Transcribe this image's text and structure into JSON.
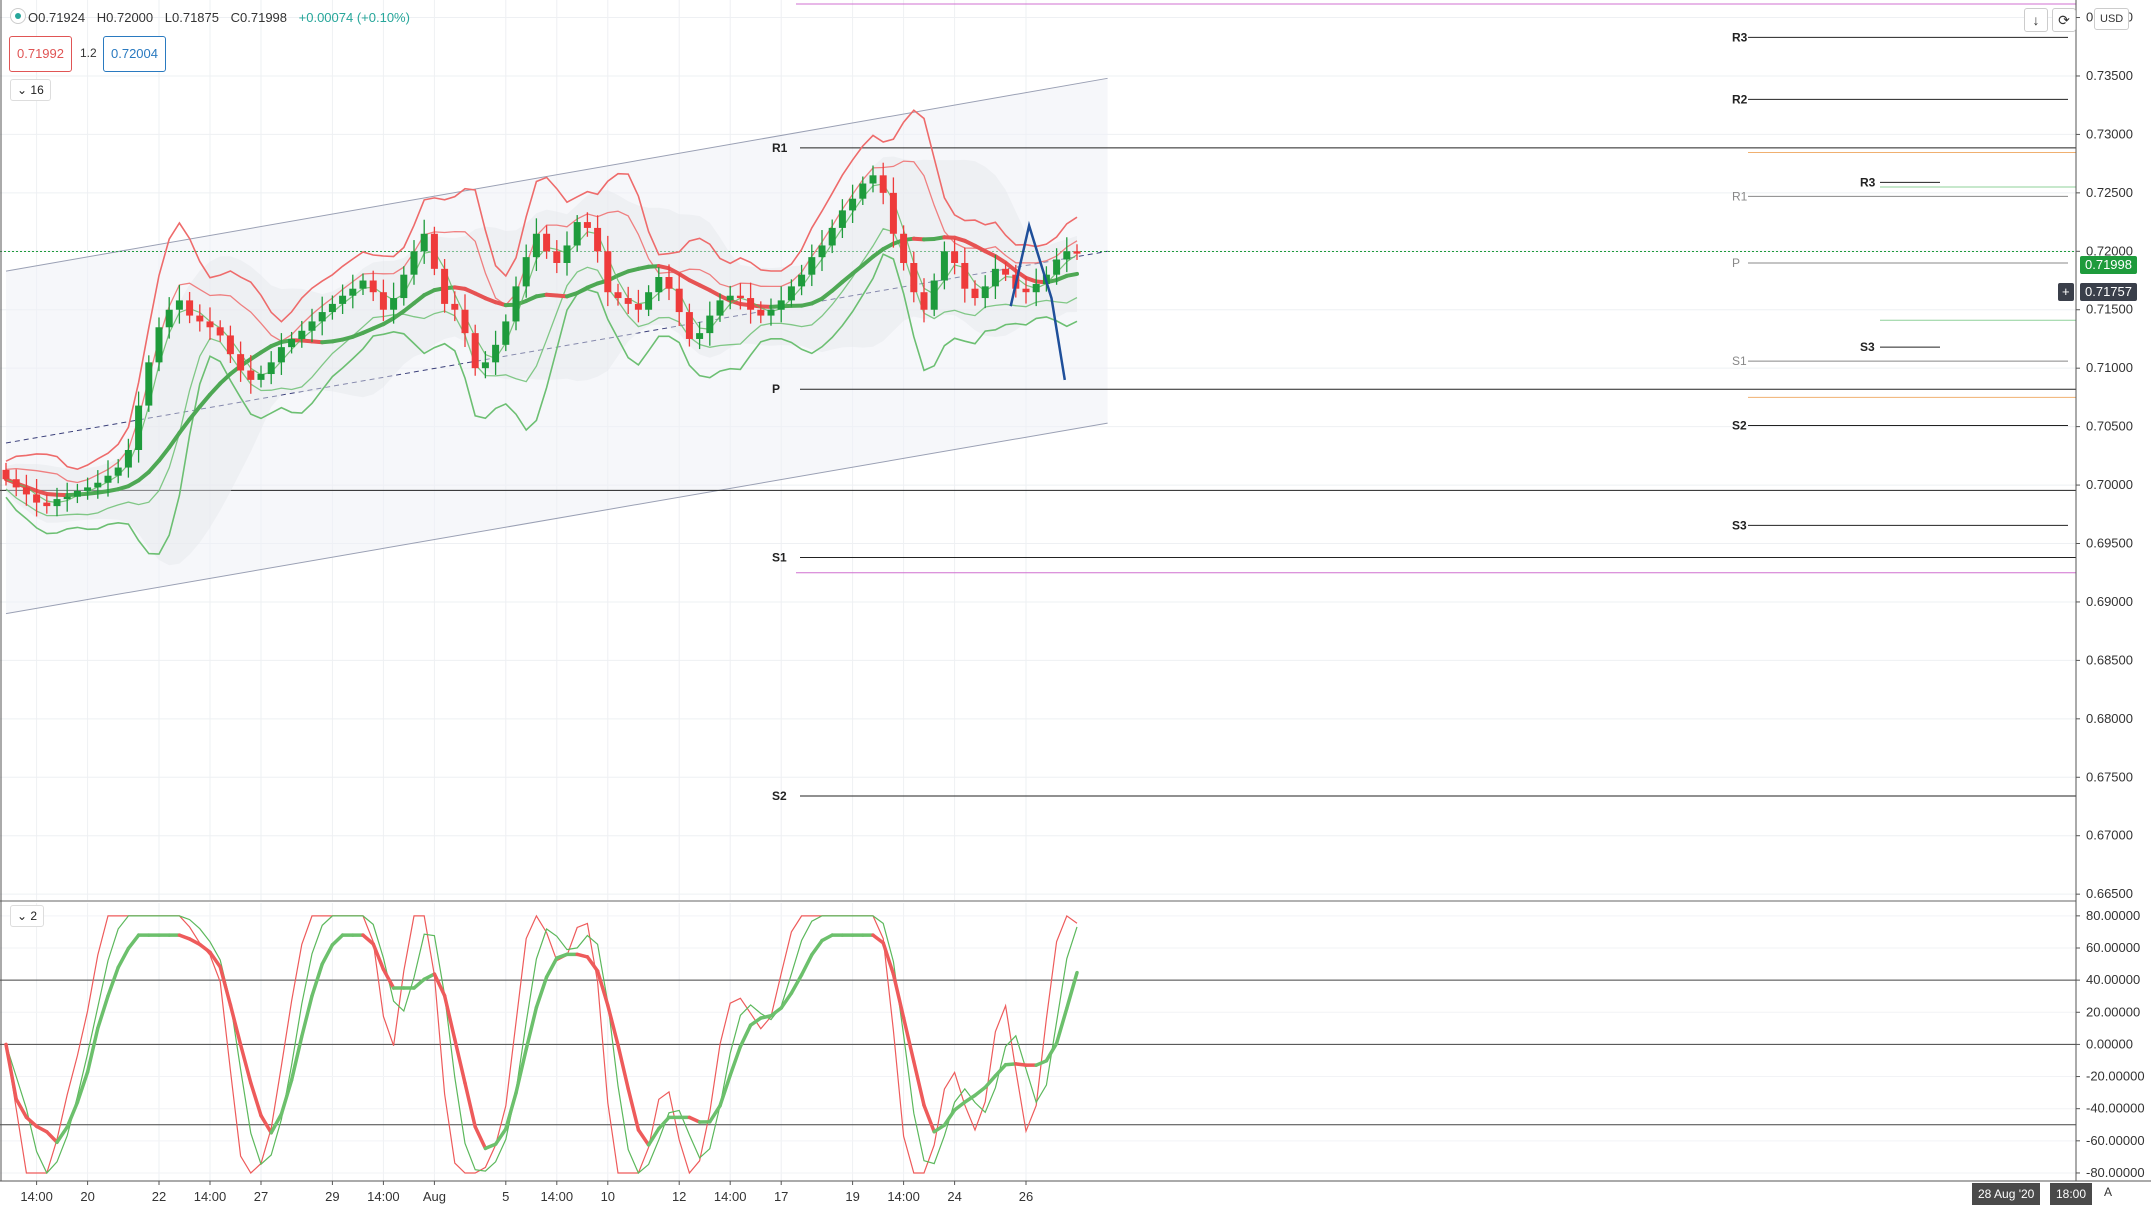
{
  "header": {
    "ohlc": [
      {
        "key": "O",
        "value": "0.71924"
      },
      {
        "key": "H",
        "value": "0.72000"
      },
      {
        "key": "L",
        "value": "0.71875"
      },
      {
        "key": "C",
        "value": "0.71998"
      },
      {
        "key": "chg",
        "value": "+0.00074 (+0.10%)"
      }
    ],
    "sell_price": "0.71992",
    "buy_price": "0.72004",
    "spread": "1.2",
    "main_collapse": "16",
    "osc_collapse": "2",
    "currency": "USD",
    "last_price_label": "0.71998",
    "cursor_price_label": "0.71757",
    "date_label": "28 Aug '20",
    "time_label": "18:00",
    "corner_label": "A"
  },
  "colors": {
    "up": "#1e9b3c",
    "down": "#ee3b3b",
    "bb_upper": "#ee6b6b",
    "bb_lower": "#6cbf72",
    "ma": "#4ea854",
    "ma_red": "#e65353",
    "channel": "#9aa0b4",
    "blue": "#1f4f9a",
    "osc_green": "#5cb85c",
    "osc_red": "#ee5b5b",
    "orange": "#f0b070",
    "violet": "#d070d0"
  },
  "chart_data": [
    {
      "type": "line",
      "y_ticks": [
        "0.74000",
        "0.73500",
        "0.73000",
        "0.72500",
        "0.72000",
        "0.71500",
        "0.71000",
        "0.70500",
        "0.70000",
        "0.69500",
        "0.69000",
        "0.68500",
        "0.68000",
        "0.67500",
        "0.67000",
        "0.66500"
      ],
      "x_ticks": [
        {
          "label": "14:00",
          "i": 3
        },
        {
          "label": "20",
          "i": 8
        },
        {
          "label": "22",
          "i": 15
        },
        {
          "label": "14:00",
          "i": 20
        },
        {
          "label": "27",
          "i": 25
        },
        {
          "label": "29",
          "i": 32
        },
        {
          "label": "14:00",
          "i": 37
        },
        {
          "label": "Aug",
          "i": 42
        },
        {
          "label": "5",
          "i": 49
        },
        {
          "label": "14:00",
          "i": 54
        },
        {
          "label": "10",
          "i": 59
        },
        {
          "label": "12",
          "i": 66
        },
        {
          "label": "14:00",
          "i": 71
        },
        {
          "label": "17",
          "i": 76
        },
        {
          "label": "19",
          "i": 83
        },
        {
          "label": "14:00",
          "i": 88
        },
        {
          "label": "24",
          "i": 93
        },
        {
          "label": "26",
          "i": 100
        }
      ],
      "ylim": [
        0.6645,
        0.7415
      ],
      "pivots_weekly": [
        {
          "label": "R1",
          "value": 0.72885
        },
        {
          "label": "P",
          "value": 0.7082
        },
        {
          "label": "S1",
          "value": 0.6938
        },
        {
          "label": "S2",
          "value": 0.6734
        }
      ],
      "pivots_daily": [
        {
          "label": "R3",
          "value": 0.7383
        },
        {
          "label": "R2",
          "value": 0.733
        },
        {
          "label": "S2",
          "value": 0.7051
        },
        {
          "label": "S3",
          "value": 0.69655
        }
      ],
      "pivots_today": [
        {
          "label": "R1",
          "value": 0.7247
        },
        {
          "label": "P",
          "value": 0.719
        },
        {
          "label": "S1",
          "value": 0.7106
        }
      ],
      "pivots_intraday": [
        {
          "label": "R3",
          "value": 0.7259
        },
        {
          "label": "S3",
          "value": 0.7118
        }
      ],
      "channel": {
        "upper": [
          [
            0,
            0.7183
          ],
          [
            108,
            0.7348
          ]
        ],
        "lower": [
          [
            0,
            0.689
          ],
          [
            108,
            0.7053
          ]
        ],
        "mid": [
          [
            0,
            0.7036
          ],
          [
            108,
            0.72
          ]
        ]
      },
      "close": [
        0.7005,
        0.6998,
        0.6992,
        0.6985,
        0.6982,
        0.6988,
        0.699,
        0.6995,
        0.6998,
        0.7002,
        0.7008,
        0.7015,
        0.703,
        0.7068,
        0.7105,
        0.7135,
        0.715,
        0.7158,
        0.7145,
        0.714,
        0.7135,
        0.7128,
        0.7112,
        0.7098,
        0.709,
        0.7095,
        0.7105,
        0.7118,
        0.7125,
        0.7132,
        0.714,
        0.7148,
        0.7155,
        0.7162,
        0.7168,
        0.7175,
        0.7165,
        0.715,
        0.716,
        0.718,
        0.72,
        0.7215,
        0.7185,
        0.7155,
        0.715,
        0.713,
        0.71,
        0.7105,
        0.712,
        0.714,
        0.717,
        0.7195,
        0.7215,
        0.72,
        0.719,
        0.7205,
        0.7225,
        0.722,
        0.72,
        0.7165,
        0.716,
        0.7155,
        0.715,
        0.7165,
        0.7178,
        0.7168,
        0.7148,
        0.7125,
        0.713,
        0.7145,
        0.7158,
        0.7162,
        0.716,
        0.715,
        0.7145,
        0.715,
        0.7158,
        0.717,
        0.718,
        0.7195,
        0.7205,
        0.722,
        0.7235,
        0.7245,
        0.7258,
        0.7265,
        0.725,
        0.7215,
        0.719,
        0.7165,
        0.715,
        0.7175,
        0.72,
        0.719,
        0.7168,
        0.716,
        0.717,
        0.7185,
        0.718,
        0.7168,
        0.7165,
        0.7172,
        0.718,
        0.7193,
        0.72,
        0.7198
      ],
      "osc_ylim": [
        -85,
        88
      ],
      "osc_ticks": [
        "80.00000",
        "60.00000",
        "40.00000",
        "20.00000",
        "0.00000",
        "-20.00000",
        "-40.00000",
        "-60.00000",
        "-80.00000"
      ],
      "osc_levels": [
        40,
        0,
        -50
      ]
    }
  ]
}
